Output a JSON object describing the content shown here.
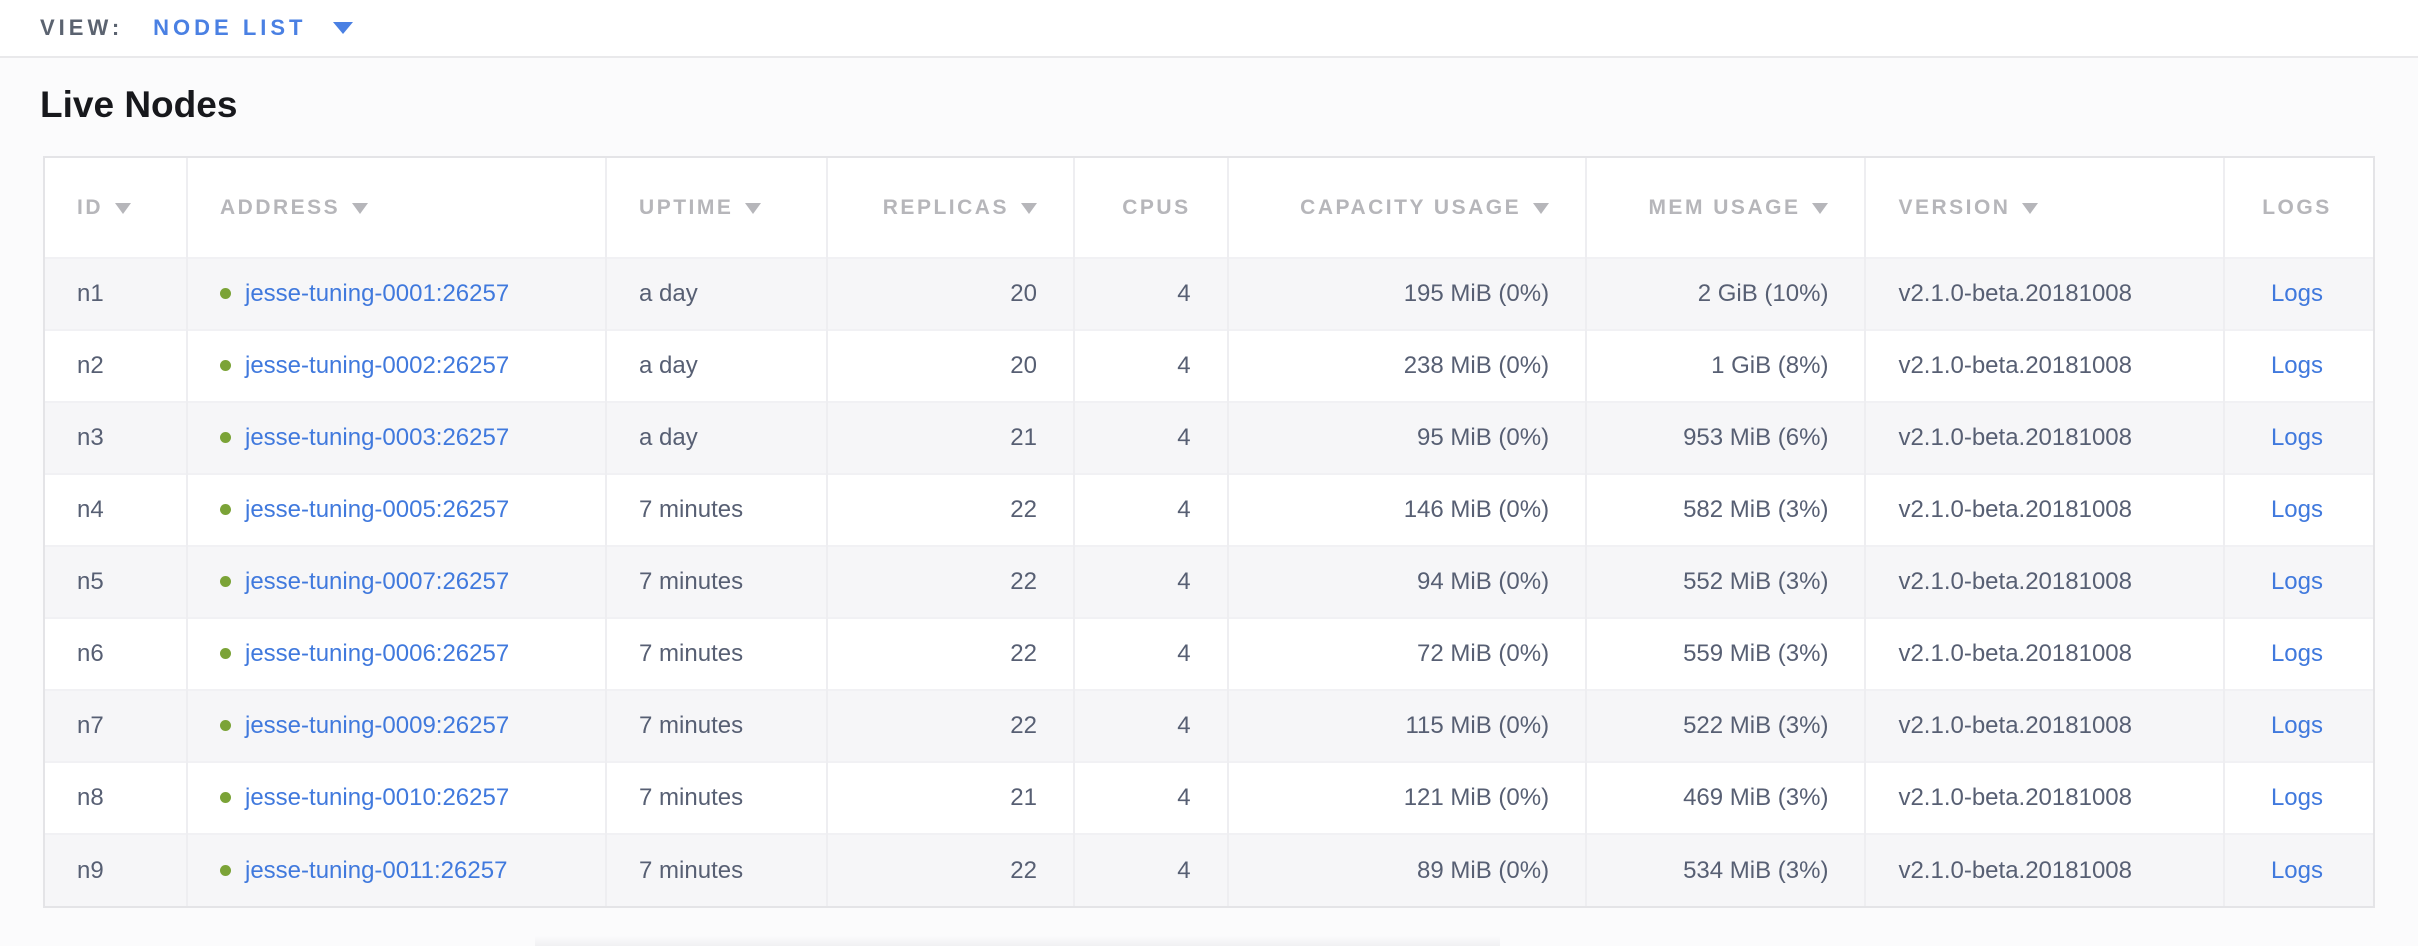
{
  "view_bar": {
    "label": "VIEW:",
    "selected_view": "NODE LIST"
  },
  "page": {
    "title": "Live Nodes"
  },
  "table": {
    "columns": [
      {
        "label": "ID",
        "sortable": true,
        "align": "left"
      },
      {
        "label": "ADDRESS",
        "sortable": true,
        "align": "left"
      },
      {
        "label": "UPTIME",
        "sortable": true,
        "align": "left"
      },
      {
        "label": "REPLICAS",
        "sortable": true,
        "align": "right"
      },
      {
        "label": "CPUS",
        "sortable": false,
        "align": "right"
      },
      {
        "label": "CAPACITY USAGE",
        "sortable": true,
        "align": "right"
      },
      {
        "label": "MEM USAGE",
        "sortable": true,
        "align": "right"
      },
      {
        "label": "VERSION",
        "sortable": true,
        "align": "left"
      },
      {
        "label": "LOGS",
        "sortable": false,
        "align": "center"
      }
    ],
    "rows": [
      {
        "id": "n1",
        "address": "jesse-tuning-0001:26257",
        "uptime": "a day",
        "replicas": "20",
        "cpus": "4",
        "capacity_usage": "195 MiB (0%)",
        "mem_usage": "2 GiB (10%)",
        "version": "v2.1.0-beta.20181008",
        "logs_label": "Logs",
        "status": "live"
      },
      {
        "id": "n2",
        "address": "jesse-tuning-0002:26257",
        "uptime": "a day",
        "replicas": "20",
        "cpus": "4",
        "capacity_usage": "238 MiB (0%)",
        "mem_usage": "1 GiB (8%)",
        "version": "v2.1.0-beta.20181008",
        "logs_label": "Logs",
        "status": "live"
      },
      {
        "id": "n3",
        "address": "jesse-tuning-0003:26257",
        "uptime": "a day",
        "replicas": "21",
        "cpus": "4",
        "capacity_usage": "95 MiB (0%)",
        "mem_usage": "953 MiB (6%)",
        "version": "v2.1.0-beta.20181008",
        "logs_label": "Logs",
        "status": "live"
      },
      {
        "id": "n4",
        "address": "jesse-tuning-0005:26257",
        "uptime": "7 minutes",
        "replicas": "22",
        "cpus": "4",
        "capacity_usage": "146 MiB (0%)",
        "mem_usage": "582 MiB (3%)",
        "version": "v2.1.0-beta.20181008",
        "logs_label": "Logs",
        "status": "live"
      },
      {
        "id": "n5",
        "address": "jesse-tuning-0007:26257",
        "uptime": "7 minutes",
        "replicas": "22",
        "cpus": "4",
        "capacity_usage": "94 MiB (0%)",
        "mem_usage": "552 MiB (3%)",
        "version": "v2.1.0-beta.20181008",
        "logs_label": "Logs",
        "status": "live"
      },
      {
        "id": "n6",
        "address": "jesse-tuning-0006:26257",
        "uptime": "7 minutes",
        "replicas": "22",
        "cpus": "4",
        "capacity_usage": "72 MiB (0%)",
        "mem_usage": "559 MiB (3%)",
        "version": "v2.1.0-beta.20181008",
        "logs_label": "Logs",
        "status": "live"
      },
      {
        "id": "n7",
        "address": "jesse-tuning-0009:26257",
        "uptime": "7 minutes",
        "replicas": "22",
        "cpus": "4",
        "capacity_usage": "115 MiB (0%)",
        "mem_usage": "522 MiB (3%)",
        "version": "v2.1.0-beta.20181008",
        "logs_label": "Logs",
        "status": "live"
      },
      {
        "id": "n8",
        "address": "jesse-tuning-0010:26257",
        "uptime": "7 minutes",
        "replicas": "21",
        "cpus": "4",
        "capacity_usage": "121 MiB (0%)",
        "mem_usage": "469 MiB (3%)",
        "version": "v2.1.0-beta.20181008",
        "logs_label": "Logs",
        "status": "live"
      },
      {
        "id": "n9",
        "address": "jesse-tuning-0011:26257",
        "uptime": "7 minutes",
        "replicas": "22",
        "cpus": "4",
        "capacity_usage": "89 MiB (0%)",
        "mem_usage": "534 MiB (3%)",
        "version": "v2.1.0-beta.20181008",
        "logs_label": "Logs",
        "status": "live"
      }
    ]
  },
  "icons": {
    "view_dropdown": "chevron-down-icon",
    "header_sort": "sort-desc-icon",
    "node_status": "live-status-dot-icon"
  },
  "colors": {
    "accent_blue": "#4a80e3",
    "link_blue": "#4079dd",
    "live_green": "#7ba337",
    "header_text": "#b6b6ba",
    "cell_text": "#575f73"
  }
}
